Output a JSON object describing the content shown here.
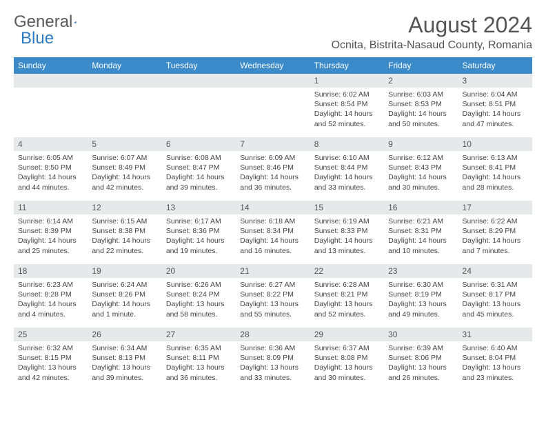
{
  "logo": {
    "text1": "General",
    "text2": "Blue"
  },
  "title": "August 2024",
  "location": "Ocnita, Bistrita-Nasaud County, Romania",
  "colors": {
    "header_bg": "#3b8bca",
    "header_text": "#ffffff",
    "daynum_bg": "#e6e8ea",
    "text": "#444444",
    "logo_gray": "#5a5a5a",
    "logo_blue": "#2f7ac0"
  },
  "weekdays": [
    "Sunday",
    "Monday",
    "Tuesday",
    "Wednesday",
    "Thursday",
    "Friday",
    "Saturday"
  ],
  "weeks": [
    [
      {
        "day": "",
        "lines": []
      },
      {
        "day": "",
        "lines": []
      },
      {
        "day": "",
        "lines": []
      },
      {
        "day": "",
        "lines": []
      },
      {
        "day": "1",
        "lines": [
          "Sunrise: 6:02 AM",
          "Sunset: 8:54 PM",
          "Daylight: 14 hours and 52 minutes."
        ]
      },
      {
        "day": "2",
        "lines": [
          "Sunrise: 6:03 AM",
          "Sunset: 8:53 PM",
          "Daylight: 14 hours and 50 minutes."
        ]
      },
      {
        "day": "3",
        "lines": [
          "Sunrise: 6:04 AM",
          "Sunset: 8:51 PM",
          "Daylight: 14 hours and 47 minutes."
        ]
      }
    ],
    [
      {
        "day": "4",
        "lines": [
          "Sunrise: 6:05 AM",
          "Sunset: 8:50 PM",
          "Daylight: 14 hours and 44 minutes."
        ]
      },
      {
        "day": "5",
        "lines": [
          "Sunrise: 6:07 AM",
          "Sunset: 8:49 PM",
          "Daylight: 14 hours and 42 minutes."
        ]
      },
      {
        "day": "6",
        "lines": [
          "Sunrise: 6:08 AM",
          "Sunset: 8:47 PM",
          "Daylight: 14 hours and 39 minutes."
        ]
      },
      {
        "day": "7",
        "lines": [
          "Sunrise: 6:09 AM",
          "Sunset: 8:46 PM",
          "Daylight: 14 hours and 36 minutes."
        ]
      },
      {
        "day": "8",
        "lines": [
          "Sunrise: 6:10 AM",
          "Sunset: 8:44 PM",
          "Daylight: 14 hours and 33 minutes."
        ]
      },
      {
        "day": "9",
        "lines": [
          "Sunrise: 6:12 AM",
          "Sunset: 8:43 PM",
          "Daylight: 14 hours and 30 minutes."
        ]
      },
      {
        "day": "10",
        "lines": [
          "Sunrise: 6:13 AM",
          "Sunset: 8:41 PM",
          "Daylight: 14 hours and 28 minutes."
        ]
      }
    ],
    [
      {
        "day": "11",
        "lines": [
          "Sunrise: 6:14 AM",
          "Sunset: 8:39 PM",
          "Daylight: 14 hours and 25 minutes."
        ]
      },
      {
        "day": "12",
        "lines": [
          "Sunrise: 6:15 AM",
          "Sunset: 8:38 PM",
          "Daylight: 14 hours and 22 minutes."
        ]
      },
      {
        "day": "13",
        "lines": [
          "Sunrise: 6:17 AM",
          "Sunset: 8:36 PM",
          "Daylight: 14 hours and 19 minutes."
        ]
      },
      {
        "day": "14",
        "lines": [
          "Sunrise: 6:18 AM",
          "Sunset: 8:34 PM",
          "Daylight: 14 hours and 16 minutes."
        ]
      },
      {
        "day": "15",
        "lines": [
          "Sunrise: 6:19 AM",
          "Sunset: 8:33 PM",
          "Daylight: 14 hours and 13 minutes."
        ]
      },
      {
        "day": "16",
        "lines": [
          "Sunrise: 6:21 AM",
          "Sunset: 8:31 PM",
          "Daylight: 14 hours and 10 minutes."
        ]
      },
      {
        "day": "17",
        "lines": [
          "Sunrise: 6:22 AM",
          "Sunset: 8:29 PM",
          "Daylight: 14 hours and 7 minutes."
        ]
      }
    ],
    [
      {
        "day": "18",
        "lines": [
          "Sunrise: 6:23 AM",
          "Sunset: 8:28 PM",
          "Daylight: 14 hours and 4 minutes."
        ]
      },
      {
        "day": "19",
        "lines": [
          "Sunrise: 6:24 AM",
          "Sunset: 8:26 PM",
          "Daylight: 14 hours and 1 minute."
        ]
      },
      {
        "day": "20",
        "lines": [
          "Sunrise: 6:26 AM",
          "Sunset: 8:24 PM",
          "Daylight: 13 hours and 58 minutes."
        ]
      },
      {
        "day": "21",
        "lines": [
          "Sunrise: 6:27 AM",
          "Sunset: 8:22 PM",
          "Daylight: 13 hours and 55 minutes."
        ]
      },
      {
        "day": "22",
        "lines": [
          "Sunrise: 6:28 AM",
          "Sunset: 8:21 PM",
          "Daylight: 13 hours and 52 minutes."
        ]
      },
      {
        "day": "23",
        "lines": [
          "Sunrise: 6:30 AM",
          "Sunset: 8:19 PM",
          "Daylight: 13 hours and 49 minutes."
        ]
      },
      {
        "day": "24",
        "lines": [
          "Sunrise: 6:31 AM",
          "Sunset: 8:17 PM",
          "Daylight: 13 hours and 45 minutes."
        ]
      }
    ],
    [
      {
        "day": "25",
        "lines": [
          "Sunrise: 6:32 AM",
          "Sunset: 8:15 PM",
          "Daylight: 13 hours and 42 minutes."
        ]
      },
      {
        "day": "26",
        "lines": [
          "Sunrise: 6:34 AM",
          "Sunset: 8:13 PM",
          "Daylight: 13 hours and 39 minutes."
        ]
      },
      {
        "day": "27",
        "lines": [
          "Sunrise: 6:35 AM",
          "Sunset: 8:11 PM",
          "Daylight: 13 hours and 36 minutes."
        ]
      },
      {
        "day": "28",
        "lines": [
          "Sunrise: 6:36 AM",
          "Sunset: 8:09 PM",
          "Daylight: 13 hours and 33 minutes."
        ]
      },
      {
        "day": "29",
        "lines": [
          "Sunrise: 6:37 AM",
          "Sunset: 8:08 PM",
          "Daylight: 13 hours and 30 minutes."
        ]
      },
      {
        "day": "30",
        "lines": [
          "Sunrise: 6:39 AM",
          "Sunset: 8:06 PM",
          "Daylight: 13 hours and 26 minutes."
        ]
      },
      {
        "day": "31",
        "lines": [
          "Sunrise: 6:40 AM",
          "Sunset: 8:04 PM",
          "Daylight: 13 hours and 23 minutes."
        ]
      }
    ]
  ]
}
